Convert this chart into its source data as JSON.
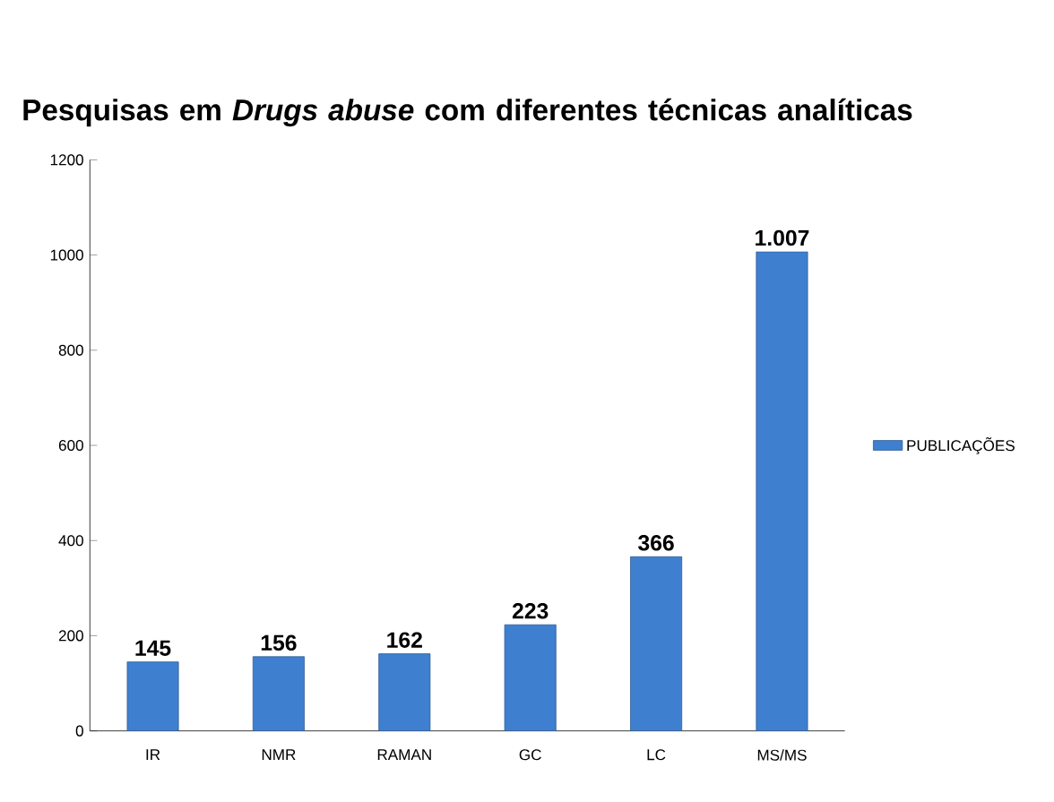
{
  "chart_data": {
    "type": "bar",
    "title": "Pesquisas em *Drugs abuse* com diferentes técnicas analíticas",
    "categories": [
      "IR",
      "NMR",
      "RAMAN",
      "GC",
      "LC",
      "MS/MS"
    ],
    "series": [
      {
        "name": "PUBLICAÇÕES",
        "color": "#3f7fcf",
        "values": [
          145,
          156,
          162,
          223,
          366,
          1007
        ],
        "value_labels": [
          "145",
          "156",
          "162",
          "223",
          "366",
          "1.007"
        ]
      }
    ],
    "ylim": [
      0,
      1200
    ],
    "yticks": [
      0,
      200,
      400,
      600,
      800,
      1000,
      1200
    ],
    "grid": false,
    "legend": "right"
  }
}
